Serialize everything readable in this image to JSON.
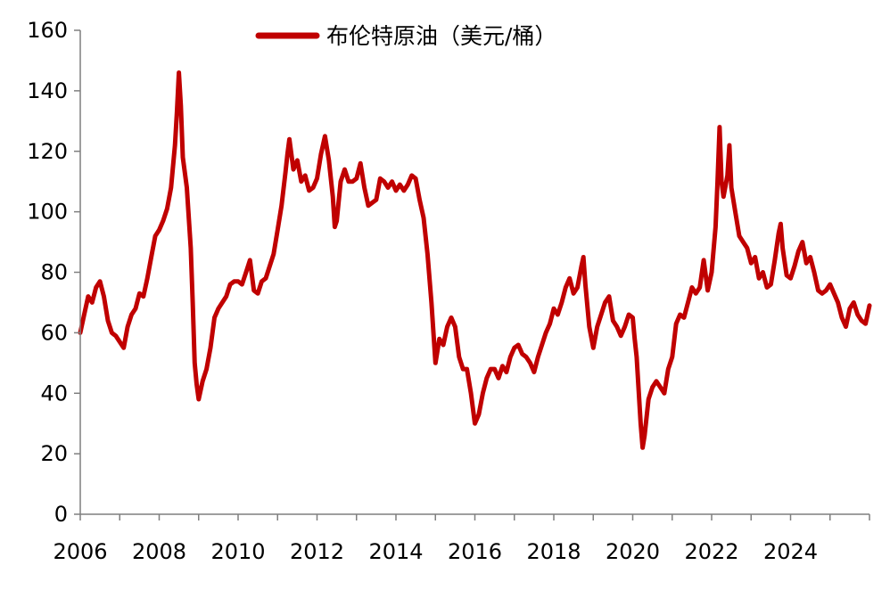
{
  "chart_data": {
    "type": "line",
    "title": "",
    "xlabel": "",
    "ylabel": "",
    "ylim": [
      0,
      160
    ],
    "xlim": [
      2006,
      2026
    ],
    "grid": false,
    "legend_position": "top-center",
    "y_ticks": [
      "0",
      "20",
      "40",
      "60",
      "80",
      "100",
      "120",
      "140",
      "160"
    ],
    "x_ticks": [
      "2006",
      "2008",
      "2010",
      "2012",
      "2014",
      "2016",
      "2018",
      "2020",
      "2022",
      "2024"
    ],
    "series": [
      {
        "name": "布伦特原油（美元/桶）",
        "color": "#c00000",
        "points": [
          [
            2006.0,
            60
          ],
          [
            2006.1,
            66
          ],
          [
            2006.2,
            72
          ],
          [
            2006.3,
            70
          ],
          [
            2006.4,
            75
          ],
          [
            2006.5,
            77
          ],
          [
            2006.6,
            72
          ],
          [
            2006.7,
            64
          ],
          [
            2006.8,
            60
          ],
          [
            2006.9,
            59
          ],
          [
            2007.0,
            57
          ],
          [
            2007.1,
            55
          ],
          [
            2007.2,
            62
          ],
          [
            2007.3,
            66
          ],
          [
            2007.4,
            68
          ],
          [
            2007.5,
            73
          ],
          [
            2007.6,
            72
          ],
          [
            2007.7,
            78
          ],
          [
            2007.8,
            85
          ],
          [
            2007.9,
            92
          ],
          [
            2008.0,
            94
          ],
          [
            2008.1,
            97
          ],
          [
            2008.2,
            101
          ],
          [
            2008.3,
            108
          ],
          [
            2008.4,
            122
          ],
          [
            2008.45,
            133
          ],
          [
            2008.5,
            146
          ],
          [
            2008.55,
            135
          ],
          [
            2008.6,
            118
          ],
          [
            2008.7,
            108
          ],
          [
            2008.8,
            88
          ],
          [
            2008.85,
            70
          ],
          [
            2008.9,
            50
          ],
          [
            2008.95,
            43
          ],
          [
            2009.0,
            38
          ],
          [
            2009.1,
            44
          ],
          [
            2009.2,
            48
          ],
          [
            2009.3,
            55
          ],
          [
            2009.4,
            65
          ],
          [
            2009.5,
            68
          ],
          [
            2009.6,
            70
          ],
          [
            2009.7,
            72
          ],
          [
            2009.8,
            76
          ],
          [
            2009.9,
            77
          ],
          [
            2010.0,
            77
          ],
          [
            2010.1,
            76
          ],
          [
            2010.2,
            80
          ],
          [
            2010.3,
            84
          ],
          [
            2010.4,
            74
          ],
          [
            2010.5,
            73
          ],
          [
            2010.6,
            77
          ],
          [
            2010.7,
            78
          ],
          [
            2010.8,
            82
          ],
          [
            2010.9,
            86
          ],
          [
            2011.0,
            94
          ],
          [
            2011.1,
            102
          ],
          [
            2011.2,
            113
          ],
          [
            2011.25,
            119
          ],
          [
            2011.3,
            124
          ],
          [
            2011.4,
            114
          ],
          [
            2011.5,
            117
          ],
          [
            2011.6,
            110
          ],
          [
            2011.7,
            112
          ],
          [
            2011.8,
            107
          ],
          [
            2011.9,
            108
          ],
          [
            2012.0,
            111
          ],
          [
            2012.1,
            119
          ],
          [
            2012.2,
            125
          ],
          [
            2012.3,
            117
          ],
          [
            2012.4,
            105
          ],
          [
            2012.45,
            95
          ],
          [
            2012.5,
            97
          ],
          [
            2012.6,
            110
          ],
          [
            2012.7,
            114
          ],
          [
            2012.8,
            110
          ],
          [
            2012.9,
            110
          ],
          [
            2013.0,
            111
          ],
          [
            2013.1,
            116
          ],
          [
            2013.2,
            108
          ],
          [
            2013.3,
            102
          ],
          [
            2013.4,
            103
          ],
          [
            2013.5,
            104
          ],
          [
            2013.6,
            111
          ],
          [
            2013.7,
            110
          ],
          [
            2013.8,
            108
          ],
          [
            2013.9,
            110
          ],
          [
            2014.0,
            107
          ],
          [
            2014.1,
            109
          ],
          [
            2014.2,
            107
          ],
          [
            2014.3,
            109
          ],
          [
            2014.4,
            112
          ],
          [
            2014.5,
            111
          ],
          [
            2014.6,
            104
          ],
          [
            2014.7,
            98
          ],
          [
            2014.8,
            86
          ],
          [
            2014.9,
            70
          ],
          [
            2015.0,
            50
          ],
          [
            2015.1,
            58
          ],
          [
            2015.2,
            56
          ],
          [
            2015.3,
            62
          ],
          [
            2015.4,
            65
          ],
          [
            2015.5,
            62
          ],
          [
            2015.6,
            52
          ],
          [
            2015.7,
            48
          ],
          [
            2015.8,
            48
          ],
          [
            2015.9,
            40
          ],
          [
            2016.0,
            30
          ],
          [
            2016.1,
            33
          ],
          [
            2016.2,
            40
          ],
          [
            2016.3,
            45
          ],
          [
            2016.4,
            48
          ],
          [
            2016.5,
            48
          ],
          [
            2016.6,
            45
          ],
          [
            2016.7,
            49
          ],
          [
            2016.8,
            47
          ],
          [
            2016.9,
            52
          ],
          [
            2017.0,
            55
          ],
          [
            2017.1,
            56
          ],
          [
            2017.2,
            53
          ],
          [
            2017.3,
            52
          ],
          [
            2017.4,
            50
          ],
          [
            2017.5,
            47
          ],
          [
            2017.6,
            52
          ],
          [
            2017.7,
            56
          ],
          [
            2017.8,
            60
          ],
          [
            2017.9,
            63
          ],
          [
            2018.0,
            68
          ],
          [
            2018.1,
            66
          ],
          [
            2018.2,
            70
          ],
          [
            2018.3,
            75
          ],
          [
            2018.4,
            78
          ],
          [
            2018.5,
            73
          ],
          [
            2018.6,
            75
          ],
          [
            2018.7,
            82
          ],
          [
            2018.75,
            85
          ],
          [
            2018.8,
            76
          ],
          [
            2018.9,
            62
          ],
          [
            2019.0,
            55
          ],
          [
            2019.1,
            62
          ],
          [
            2019.2,
            66
          ],
          [
            2019.3,
            70
          ],
          [
            2019.4,
            72
          ],
          [
            2019.5,
            64
          ],
          [
            2019.6,
            62
          ],
          [
            2019.7,
            59
          ],
          [
            2019.8,
            62
          ],
          [
            2019.9,
            66
          ],
          [
            2020.0,
            65
          ],
          [
            2020.05,
            58
          ],
          [
            2020.1,
            52
          ],
          [
            2020.2,
            30
          ],
          [
            2020.25,
            22
          ],
          [
            2020.3,
            26
          ],
          [
            2020.4,
            38
          ],
          [
            2020.5,
            42
          ],
          [
            2020.6,
            44
          ],
          [
            2020.7,
            42
          ],
          [
            2020.8,
            40
          ],
          [
            2020.9,
            48
          ],
          [
            2021.0,
            52
          ],
          [
            2021.1,
            63
          ],
          [
            2021.2,
            66
          ],
          [
            2021.3,
            65
          ],
          [
            2021.4,
            70
          ],
          [
            2021.5,
            75
          ],
          [
            2021.6,
            73
          ],
          [
            2021.7,
            75
          ],
          [
            2021.8,
            84
          ],
          [
            2021.9,
            74
          ],
          [
            2022.0,
            80
          ],
          [
            2022.1,
            95
          ],
          [
            2022.15,
            110
          ],
          [
            2022.2,
            128
          ],
          [
            2022.25,
            110
          ],
          [
            2022.3,
            105
          ],
          [
            2022.4,
            112
          ],
          [
            2022.45,
            122
          ],
          [
            2022.5,
            108
          ],
          [
            2022.6,
            100
          ],
          [
            2022.7,
            92
          ],
          [
            2022.8,
            90
          ],
          [
            2022.9,
            88
          ],
          [
            2023.0,
            83
          ],
          [
            2023.1,
            85
          ],
          [
            2023.2,
            78
          ],
          [
            2023.3,
            80
          ],
          [
            2023.4,
            75
          ],
          [
            2023.5,
            76
          ],
          [
            2023.6,
            84
          ],
          [
            2023.7,
            93
          ],
          [
            2023.75,
            96
          ],
          [
            2023.8,
            88
          ],
          [
            2023.9,
            79
          ],
          [
            2024.0,
            78
          ],
          [
            2024.1,
            82
          ],
          [
            2024.2,
            87
          ],
          [
            2024.3,
            90
          ],
          [
            2024.4,
            83
          ],
          [
            2024.5,
            85
          ],
          [
            2024.6,
            80
          ],
          [
            2024.7,
            74
          ],
          [
            2024.8,
            73
          ],
          [
            2024.9,
            74
          ],
          [
            2025.0,
            76
          ],
          [
            2025.1,
            73
          ],
          [
            2025.2,
            70
          ],
          [
            2025.3,
            65
          ],
          [
            2025.4,
            62
          ],
          [
            2025.5,
            68
          ],
          [
            2025.6,
            70
          ],
          [
            2025.7,
            66
          ],
          [
            2025.8,
            64
          ],
          [
            2025.9,
            63
          ],
          [
            2026.0,
            69
          ]
        ]
      }
    ]
  }
}
